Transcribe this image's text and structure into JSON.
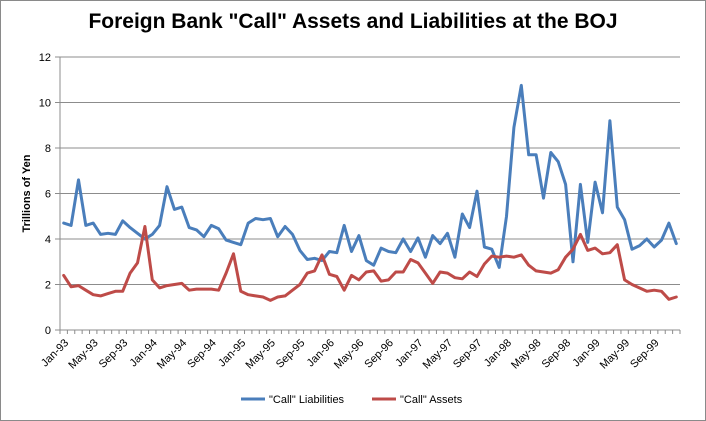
{
  "chart_data": {
    "type": "line",
    "title": "Foreign Bank \"Call\" Assets and Liabilities at the BOJ",
    "ylabel": "Trillions of Yen",
    "xlabel": "",
    "ylim": [
      0,
      12
    ],
    "yticks": [
      0,
      2,
      4,
      6,
      8,
      10,
      12
    ],
    "grid": true,
    "legend_position": "bottom",
    "x": [
      "Jan-93",
      "Feb-93",
      "Mar-93",
      "Apr-93",
      "May-93",
      "Jun-93",
      "Jul-93",
      "Aug-93",
      "Sep-93",
      "Oct-93",
      "Nov-93",
      "Dec-93",
      "Jan-94",
      "Feb-94",
      "Mar-94",
      "Apr-94",
      "May-94",
      "Jun-94",
      "Jul-94",
      "Aug-94",
      "Sep-94",
      "Oct-94",
      "Nov-94",
      "Dec-94",
      "Jan-95",
      "Feb-95",
      "Mar-95",
      "Apr-95",
      "May-95",
      "Jun-95",
      "Jul-95",
      "Aug-95",
      "Sep-95",
      "Oct-95",
      "Nov-95",
      "Dec-95",
      "Jan-96",
      "Feb-96",
      "Mar-96",
      "Apr-96",
      "May-96",
      "Jun-96",
      "Jul-96",
      "Aug-96",
      "Sep-96",
      "Oct-96",
      "Nov-96",
      "Dec-96",
      "Jan-97",
      "Feb-97",
      "Mar-97",
      "Apr-97",
      "May-97",
      "Jun-97",
      "Jul-97",
      "Aug-97",
      "Sep-97",
      "Oct-97",
      "Nov-97",
      "Dec-97",
      "Jan-98",
      "Feb-98",
      "Mar-98",
      "Apr-98",
      "May-98",
      "Jun-98",
      "Jul-98",
      "Aug-98",
      "Sep-98",
      "Oct-98",
      "Nov-98",
      "Dec-98",
      "Jan-99",
      "Feb-99",
      "Mar-99",
      "Apr-99",
      "May-99",
      "Jun-99",
      "Jul-99",
      "Aug-99",
      "Sep-99",
      "Oct-99",
      "Nov-99",
      "Dec-99"
    ],
    "xticklabels": [
      "Jan-93",
      "May-93",
      "Sep-93",
      "Jan-94",
      "May-94",
      "Sep-94",
      "Jan-95",
      "May-95",
      "Sep-95",
      "Jan-96",
      "May-96",
      "Sep-96",
      "Jan-97",
      "May-97",
      "Sep-97",
      "Jan-98",
      "May-98",
      "Sep-98",
      "Jan-99",
      "May-99",
      "Sep-99"
    ],
    "series": [
      {
        "name": "\"Call\" Liabilities",
        "color": "#4a7ebb",
        "values": [
          4.7,
          4.6,
          6.6,
          4.6,
          4.7,
          4.2,
          4.25,
          4.2,
          4.8,
          4.5,
          4.25,
          4.0,
          4.2,
          4.6,
          6.3,
          5.3,
          5.4,
          4.5,
          4.4,
          4.1,
          4.6,
          4.45,
          3.95,
          3.85,
          3.75,
          4.7,
          4.9,
          4.85,
          4.9,
          4.1,
          4.55,
          4.2,
          3.5,
          3.1,
          3.15,
          3.05,
          3.45,
          3.4,
          4.6,
          3.45,
          4.15,
          3.05,
          2.85,
          3.6,
          3.45,
          3.4,
          4.0,
          3.45,
          4.05,
          3.2,
          4.15,
          3.8,
          4.25,
          3.2,
          5.1,
          4.5,
          6.1,
          3.65,
          3.55,
          2.75,
          5.0,
          8.9,
          10.75,
          7.7,
          7.7,
          5.8,
          7.8,
          7.4,
          6.4,
          3.0,
          6.4,
          3.85,
          6.5,
          5.15,
          9.2,
          5.4,
          4.85,
          3.55,
          3.7,
          4.0,
          3.65,
          3.95,
          4.7,
          3.8
        ]
      },
      {
        "name": "\"Call\" Assets",
        "color": "#be4b48",
        "values": [
          2.4,
          1.9,
          1.95,
          1.75,
          1.55,
          1.5,
          1.6,
          1.7,
          1.7,
          2.5,
          2.95,
          4.55,
          2.2,
          1.85,
          1.95,
          2.0,
          2.05,
          1.75,
          1.8,
          1.8,
          1.8,
          1.75,
          2.5,
          3.35,
          1.7,
          1.55,
          1.5,
          1.45,
          1.3,
          1.45,
          1.5,
          1.75,
          2.0,
          2.5,
          2.6,
          3.3,
          2.45,
          2.35,
          1.75,
          2.4,
          2.2,
          2.55,
          2.6,
          2.15,
          2.2,
          2.55,
          2.55,
          3.1,
          2.95,
          2.5,
          2.05,
          2.55,
          2.5,
          2.3,
          2.25,
          2.55,
          2.35,
          2.9,
          3.25,
          3.2,
          3.25,
          3.2,
          3.3,
          2.85,
          2.6,
          2.55,
          2.5,
          2.65,
          3.2,
          3.55,
          4.2,
          3.5,
          3.6,
          3.35,
          3.4,
          3.75,
          2.2,
          2.0,
          1.85,
          1.7,
          1.75,
          1.7,
          1.35,
          1.45
        ]
      }
    ]
  }
}
